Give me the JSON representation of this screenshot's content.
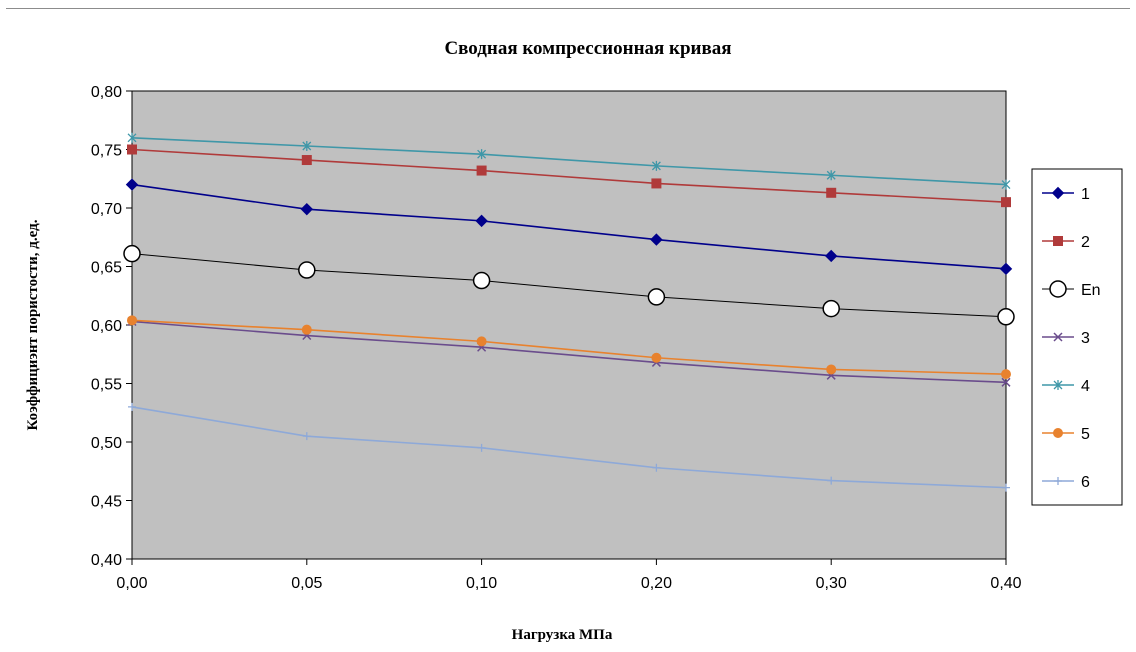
{
  "chart_data": {
    "type": "line",
    "title": "Сводная компрессионная кривая",
    "xlabel": "Нагрузка МПа",
    "ylabel": "Коэффициэнт пористости, д.ед.",
    "categories": [
      "0,00",
      "0,05",
      "0,10",
      "0,20",
      "0,30",
      "0,40"
    ],
    "ylim": [
      0.4,
      0.8
    ],
    "y_ticks": [
      "0,40",
      "0,45",
      "0,50",
      "0,55",
      "0,60",
      "0,65",
      "0,70",
      "0,75",
      "0,80"
    ],
    "plot_background": "#c0c0c0",
    "grid": false,
    "legend_position": "right",
    "series": [
      {
        "name": "1",
        "color": "#00008b",
        "marker": "diamond",
        "values": [
          0.72,
          0.699,
          0.689,
          0.673,
          0.659,
          0.648
        ]
      },
      {
        "name": "2",
        "color": "#b03a3a",
        "marker": "square",
        "values": [
          0.75,
          0.741,
          0.732,
          0.721,
          0.713,
          0.705
        ]
      },
      {
        "name": "En",
        "color": "#000000",
        "marker": "circle-open",
        "values": [
          0.661,
          0.647,
          0.638,
          0.624,
          0.614,
          0.607
        ]
      },
      {
        "name": "3",
        "color": "#6a4c8c",
        "marker": "x",
        "values": [
          0.603,
          0.591,
          0.581,
          0.568,
          0.557,
          0.551
        ]
      },
      {
        "name": "4",
        "color": "#3f97a8",
        "marker": "star",
        "values": [
          0.76,
          0.753,
          0.746,
          0.736,
          0.728,
          0.72
        ]
      },
      {
        "name": "5",
        "color": "#e8822e",
        "marker": "circle",
        "values": [
          0.604,
          0.596,
          0.586,
          0.572,
          0.562,
          0.558
        ]
      },
      {
        "name": "6",
        "color": "#8ea9d8",
        "marker": "plus",
        "values": [
          0.53,
          0.505,
          0.495,
          0.478,
          0.467,
          0.461
        ]
      }
    ]
  }
}
